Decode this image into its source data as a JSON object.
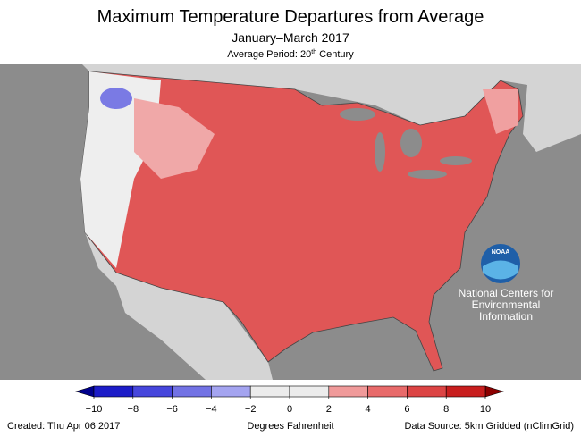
{
  "header": {
    "title": "Maximum Temperature Departures from Average",
    "subtitle": "January–March 2017",
    "average_period": {
      "prefix": "Average Period: 20",
      "sup": "th",
      "suffix": " Century"
    }
  },
  "logo": {
    "mark": "NOAA",
    "lines": [
      "National Centers for",
      "Environmental",
      "Information"
    ]
  },
  "legend": {
    "ticks": [
      {
        "value": -10,
        "label": "−10"
      },
      {
        "value": -8,
        "label": "−8"
      },
      {
        "value": -6,
        "label": "−6"
      },
      {
        "value": -4,
        "label": "−4"
      },
      {
        "value": -2,
        "label": "−2"
      },
      0,
      2,
      4,
      6,
      8,
      10
    ],
    "colors": [
      "#1c1cc8",
      "#4646dc",
      "#7272e4",
      "#a4a4f0",
      "#ececec",
      "#ececec",
      "#f09a9a",
      "#e86a6a",
      "#dc4444",
      "#c81e1e"
    ],
    "under_color": "#00008c",
    "over_color": "#8c0000",
    "units": "Degrees Fahrenheit"
  },
  "footer": {
    "created": "Created: Thu Apr 06 2017",
    "source": "Data Source: 5km Gridded (nClimGrid)"
  }
}
